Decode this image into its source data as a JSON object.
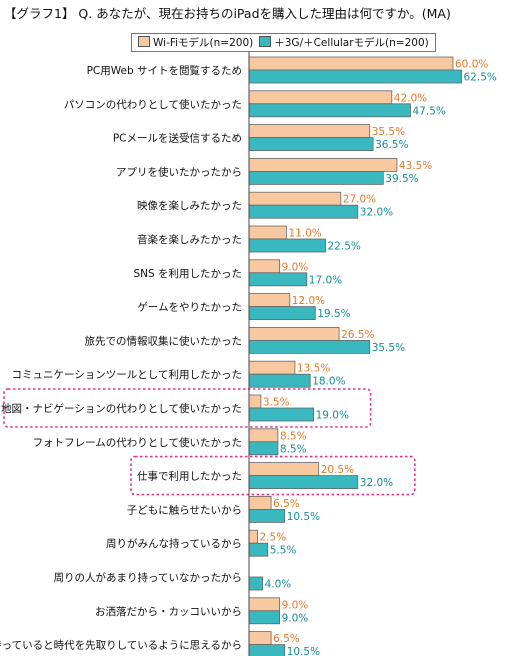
{
  "title": "【グラフ1】 Q. あなたが、現在お持ちのiPadを購入した理由は何ですか。(MA)",
  "colors": {
    "wifi": "#f8c8a0",
    "cellular": "#3ab8bf",
    "wifi_label": "#e27a2a",
    "cellular_label": "#168e96",
    "highlight": "#e8328c"
  },
  "chart_data": {
    "type": "bar",
    "orientation": "horizontal",
    "title": "【グラフ1】 Q. あなたが、現在お持ちのiPadを購入した理由は何ですか。(MA)",
    "legend_position": "top",
    "xlim": [
      0,
      65
    ],
    "unit": "%",
    "categories": [
      "PC用Web サイトを閲覧するため",
      "パソコンの代わりとして使いたかった",
      "PCメールを送受信するため",
      "アプリを使いたかったから",
      "映像を楽しみたかった",
      "音楽を楽しみたかった",
      "SNS を利用したかった",
      "ゲームをやりたかった",
      "旅先での情報収集に使いたかった",
      "コミュニケーションツールとして利用したかった",
      "地図・ナビゲーションの代わりとして使いたかった",
      "フォトフレームの代わりとして使いたかった",
      "仕事で利用したかった",
      "子どもに触らせたいから",
      "周りがみんな持っているから",
      "周りの人があまり持っていなかったから",
      "お洒落だから・カッコいいから",
      "持っていると時代を先取りしているように思えるから"
    ],
    "series": [
      {
        "name": "Wi-Fiモデル(n=200)",
        "values": [
          60.0,
          42.0,
          35.5,
          43.5,
          27.0,
          11.0,
          9.0,
          12.0,
          26.5,
          13.5,
          3.5,
          8.5,
          20.5,
          6.5,
          2.5,
          0.0,
          9.0,
          6.5
        ],
        "labels": [
          "60.0%",
          "42.0%",
          "35.5%",
          "43.5%",
          "27.0%",
          "11.0%",
          "9.0%",
          "12.0%",
          "26.5%",
          "13.5%",
          "3.5%",
          "8.5%",
          "20.5%",
          "6.5%",
          "2.5%",
          "",
          "9.0%",
          "6.5%"
        ]
      },
      {
        "name": "＋3G/＋Cellularモデル(n=200)",
        "values": [
          62.5,
          47.5,
          36.5,
          39.5,
          32.0,
          22.5,
          17.0,
          19.5,
          35.5,
          18.0,
          19.0,
          8.5,
          32.0,
          10.5,
          5.5,
          4.0,
          9.0,
          10.5
        ],
        "labels": [
          "62.5%",
          "47.5%",
          "36.5%",
          "39.5%",
          "32.0%",
          "22.5%",
          "17.0%",
          "19.5%",
          "35.5%",
          "18.0%",
          "19.0%",
          "8.5%",
          "32.0%",
          "10.5%",
          "5.5%",
          "4.0%",
          "9.0%",
          "10.5%"
        ]
      }
    ],
    "highlighted_categories": [
      10,
      12
    ]
  }
}
